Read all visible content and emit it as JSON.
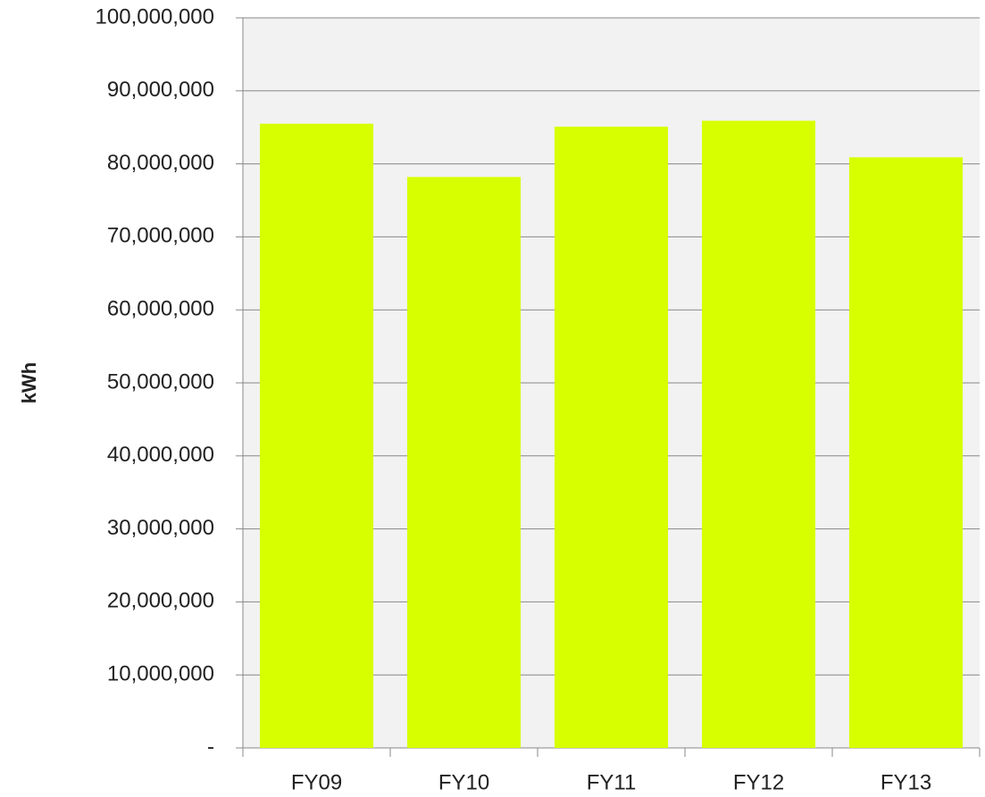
{
  "chart_data": {
    "type": "bar",
    "y_label": "kWh",
    "categories": [
      "FY09",
      "FY10",
      "FY11",
      "FY12",
      "FY13"
    ],
    "values": [
      85500000,
      78200000,
      85100000,
      85900000,
      80900000
    ],
    "color": "#d7ff00",
    "ylim": [
      0,
      100000000
    ],
    "yticks": [
      {
        "value": 0,
        "label": "-"
      },
      {
        "value": 10000000,
        "label": "10,000,000"
      },
      {
        "value": 20000000,
        "label": "20,000,000"
      },
      {
        "value": 30000000,
        "label": "30,000,000"
      },
      {
        "value": 40000000,
        "label": "40,000,000"
      },
      {
        "value": 50000000,
        "label": "50,000,000"
      },
      {
        "value": 60000000,
        "label": "60,000,000"
      },
      {
        "value": 70000000,
        "label": "70,000,000"
      },
      {
        "value": 80000000,
        "label": "80,000,000"
      },
      {
        "value": 90000000,
        "label": "90,000,000"
      },
      {
        "value": 100000000,
        "label": "100,000,000"
      }
    ],
    "grid": true
  }
}
